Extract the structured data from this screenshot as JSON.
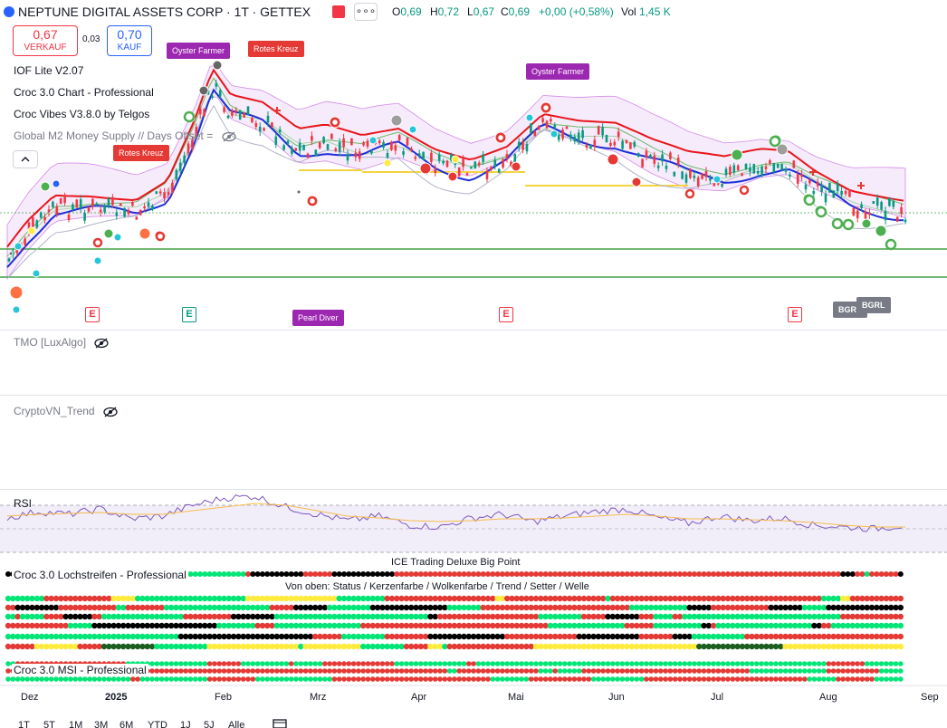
{
  "header": {
    "symbol_title": "NEPTUNE DIGITAL ASSETS CORP · 1T · GETTEX",
    "more_label": "∘∘∘",
    "ohlc": [
      {
        "label": "O",
        "value": "0,69"
      },
      {
        "label": "H",
        "value": "0,72"
      },
      {
        "label": "L",
        "value": "0,67"
      },
      {
        "label": "C",
        "value": "0,69"
      }
    ],
    "change": "+0,00 (+0,58%)",
    "volume_label": "Vol",
    "volume_value": "1,45 K"
  },
  "trade": {
    "sell_price": "0,67",
    "sell_label": "VERKAUF",
    "spread": "0,03",
    "buy_price": "0,70",
    "buy_label": "KAUF"
  },
  "indicators": {
    "iof": "IOF Lite V2.07",
    "croc_chart": "Croc 3.0 Chart - Professional",
    "croc_vibes": "Croc Vibes V3.8.0 by Telgos",
    "global_m2": "Global M2 Money Supply // Days Offset ="
  },
  "signals": {
    "oyster_farmer": "Oyster Farmer",
    "rotes_kreuz": "Rotes Kreuz",
    "pearl_diver": "Pearl Diver",
    "bgrl": "BGRL",
    "earnings": "E"
  },
  "panes": {
    "tmo": "TMO [LuxAlgo]",
    "cryptovn": "CryptoVN_Trend",
    "rsi": "RSI",
    "ice": "ICE Trading Deluxe Big Point",
    "lochstreifen": "Croc 3.0 Lochstreifen - Professional",
    "legend": "Von oben: Status / Kerzenfarbe / Wolkenfarbe / Trend / Setter / Welle",
    "msi": "Croc 3.0 MSI - Professional"
  },
  "x_axis": [
    "Dez",
    "2025",
    "Feb",
    "Mrz",
    "Apr",
    "Mai",
    "Jun",
    "Jul",
    "Aug",
    "Sep"
  ],
  "timeframes": [
    "1T",
    "5T",
    "1M",
    "3M",
    "6M",
    "YTD",
    "1J",
    "5J",
    "Alle"
  ],
  "colors": {
    "up": "#089981",
    "down": "#f23645",
    "blue_line": "#1e2fd8",
    "red_line": "#e8161b",
    "cloud": "#e9d2f5",
    "rsi_line": "#7e57c2",
    "rsi_ma": "#f7bc4c"
  },
  "chart_data": {
    "type": "candlestick",
    "x": [
      "Dez",
      "2025",
      "Feb",
      "Mrz",
      "Apr",
      "Mai",
      "Jun",
      "Jul",
      "Aug",
      "Sep"
    ],
    "last_close": 0.69,
    "rsi": {
      "values": [
        48,
        55,
        52,
        58,
        47,
        50,
        62,
        70,
        72,
        60,
        52,
        45,
        50,
        40,
        38,
        48,
        52,
        44,
        50,
        55,
        58,
        48,
        42,
        50,
        45,
        48,
        40,
        38,
        36,
        40
      ],
      "ma": [
        50,
        52,
        53,
        54,
        52,
        52,
        56,
        60,
        64,
        62,
        56,
        50,
        48,
        45,
        44,
        45,
        47,
        47,
        48,
        50,
        52,
        50,
        47,
        47,
        46,
        45,
        43,
        40,
        38,
        38
      ]
    }
  }
}
